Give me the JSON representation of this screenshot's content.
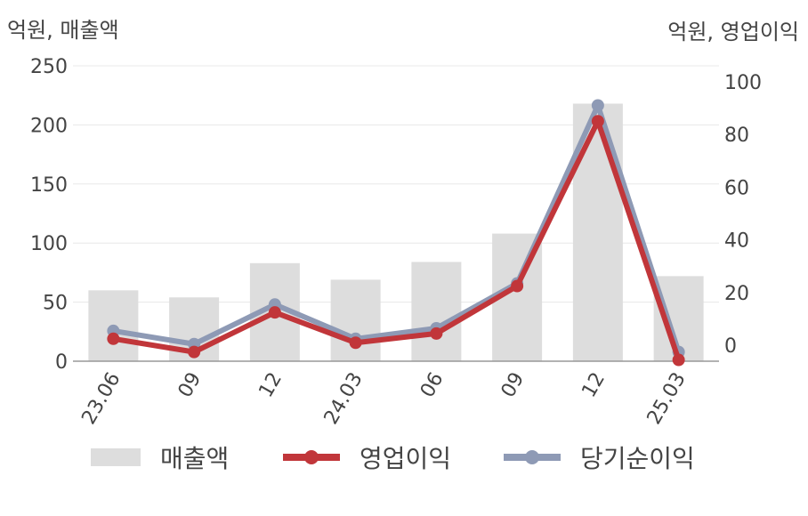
{
  "chart_data": {
    "type": "bar",
    "categories": [
      "23.06",
      "09",
      "12",
      "24.03",
      "06",
      "09",
      "12",
      "25.03"
    ],
    "left_axis": {
      "title": "억원, 매출액",
      "ticks": [
        0,
        50,
        100,
        150,
        200,
        250
      ],
      "ylim": [
        0,
        250
      ]
    },
    "right_axis": {
      "title": "억원, 영업이익",
      "ticks": [
        0,
        20,
        40,
        60,
        80,
        100
      ],
      "ylim": [
        -6,
        106
      ]
    },
    "series": [
      {
        "name": "매출액",
        "type": "bar",
        "axis": "left",
        "color": "#dddddd",
        "values": [
          60,
          54,
          83,
          69,
          84,
          108,
          218,
          72
        ]
      },
      {
        "name": "영업이익",
        "type": "line",
        "axis": "right",
        "color": "#c1363a",
        "values": [
          2.5,
          -2.5,
          12.5,
          1,
          4.5,
          22.5,
          85,
          -5.5
        ]
      },
      {
        "name": "당기순이익",
        "type": "line",
        "axis": "right",
        "color": "#8e9ab5",
        "values": [
          5.5,
          0.5,
          15.5,
          2.5,
          6.5,
          23.5,
          91,
          -2.5
        ]
      }
    ],
    "grid": true,
    "legend": "bottom"
  },
  "legend": {
    "items": [
      {
        "label": "매출액",
        "kind": "bar",
        "color": "#dddddd"
      },
      {
        "label": "영업이익",
        "kind": "line",
        "color": "#c1363a"
      },
      {
        "label": "당기순이익",
        "kind": "line",
        "color": "#8e9ab5"
      }
    ]
  }
}
